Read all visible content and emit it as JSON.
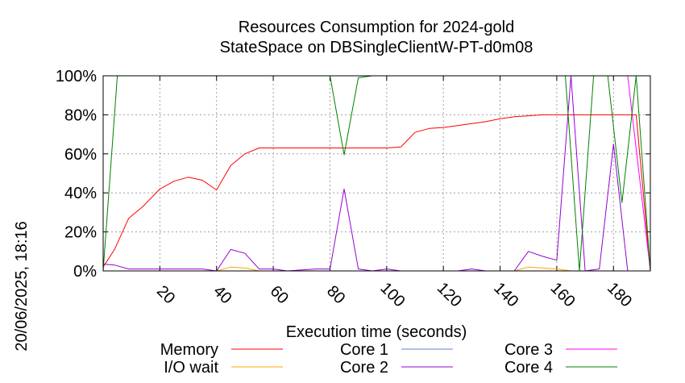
{
  "chart_data": {
    "type": "line",
    "title": "Resources Consumption for 2024-gold",
    "subtitle": "StateSpace on DBSingleClientW-PT-d0m08",
    "xlabel": "Execution time (seconds)",
    "ylabel": "",
    "side_label": "20/06/2025, 18:16",
    "xlim": [
      0,
      193
    ],
    "ylim": [
      0,
      100
    ],
    "x_ticks": [
      20,
      40,
      60,
      80,
      100,
      120,
      140,
      160,
      180
    ],
    "y_ticks": [
      0,
      20,
      40,
      60,
      80,
      100
    ],
    "y_tick_labels": [
      "0%",
      "20%",
      "40%",
      "60%",
      "80%",
      "100%"
    ],
    "grid": true,
    "legend_position": "bottom",
    "series": [
      {
        "name": "Memory",
        "color": "#ff0000",
        "points": [
          [
            0,
            2
          ],
          [
            4,
            11
          ],
          [
            9,
            27
          ],
          [
            14,
            33
          ],
          [
            20,
            42
          ],
          [
            25,
            46
          ],
          [
            30,
            48
          ],
          [
            35,
            46.5
          ],
          [
            40,
            41.5
          ],
          [
            45,
            54
          ],
          [
            50,
            60
          ],
          [
            55,
            63
          ],
          [
            60,
            63
          ],
          [
            70,
            63
          ],
          [
            80,
            63
          ],
          [
            90,
            63
          ],
          [
            100,
            63
          ],
          [
            105,
            63.5
          ],
          [
            110,
            71
          ],
          [
            115,
            73
          ],
          [
            120,
            73.5
          ],
          [
            125,
            74.5
          ],
          [
            130,
            75.5
          ],
          [
            135,
            76.5
          ],
          [
            140,
            78
          ],
          [
            145,
            79
          ],
          [
            150,
            79.5
          ],
          [
            155,
            80
          ],
          [
            160,
            80
          ],
          [
            170,
            80
          ],
          [
            180,
            80
          ],
          [
            188,
            80
          ],
          [
            193,
            0
          ]
        ]
      },
      {
        "name": "I/O wait",
        "color": "#ffa500",
        "points": [
          [
            0,
            0
          ],
          [
            40,
            0
          ],
          [
            45,
            2
          ],
          [
            50,
            1.5
          ],
          [
            55,
            0
          ],
          [
            145,
            0
          ],
          [
            150,
            2
          ],
          [
            155,
            1.5
          ],
          [
            160,
            1
          ],
          [
            165,
            0
          ],
          [
            193,
            0
          ]
        ]
      },
      {
        "name": "Core 1",
        "color": "#5b7fd6",
        "points": [
          [
            0,
            0
          ],
          [
            193,
            0
          ]
        ]
      },
      {
        "name": "Core 2",
        "color": "#9400d3",
        "points": [
          [
            0,
            3.5
          ],
          [
            4,
            3
          ],
          [
            9,
            1
          ],
          [
            15,
            1
          ],
          [
            20,
            1
          ],
          [
            25,
            1
          ],
          [
            30,
            1
          ],
          [
            35,
            1
          ],
          [
            40,
            0
          ],
          [
            45,
            11
          ],
          [
            50,
            9
          ],
          [
            55,
            1
          ],
          [
            60,
            1
          ],
          [
            65,
            0
          ],
          [
            75,
            1
          ],
          [
            80,
            1
          ],
          [
            85,
            42
          ],
          [
            90,
            1
          ],
          [
            95,
            0
          ],
          [
            100,
            1
          ],
          [
            105,
            0
          ],
          [
            125,
            0
          ],
          [
            130,
            1
          ],
          [
            135,
            0
          ],
          [
            145,
            0
          ],
          [
            150,
            10
          ],
          [
            155,
            7.5
          ],
          [
            160,
            5.5
          ],
          [
            165,
            100
          ],
          [
            170,
            0
          ],
          [
            175,
            1
          ],
          [
            180,
            65
          ],
          [
            185,
            0
          ],
          [
            193,
            0
          ]
        ]
      },
      {
        "name": "Core 3",
        "color": "#ff00ff",
        "points": [
          [
            80,
            100
          ],
          [
            185,
            100
          ],
          [
            193,
            0
          ]
        ]
      },
      {
        "name": "Core 4",
        "color": "#008000",
        "points": [
          [
            0,
            0
          ],
          [
            5,
            100
          ],
          [
            80,
            100
          ],
          [
            85,
            59.5
          ],
          [
            90,
            99
          ],
          [
            95,
            100
          ],
          [
            163,
            100
          ],
          [
            168,
            0
          ],
          [
            173,
            100
          ],
          [
            178,
            100
          ],
          [
            183,
            35
          ],
          [
            188,
            100
          ],
          [
            193,
            0
          ]
        ]
      }
    ]
  }
}
